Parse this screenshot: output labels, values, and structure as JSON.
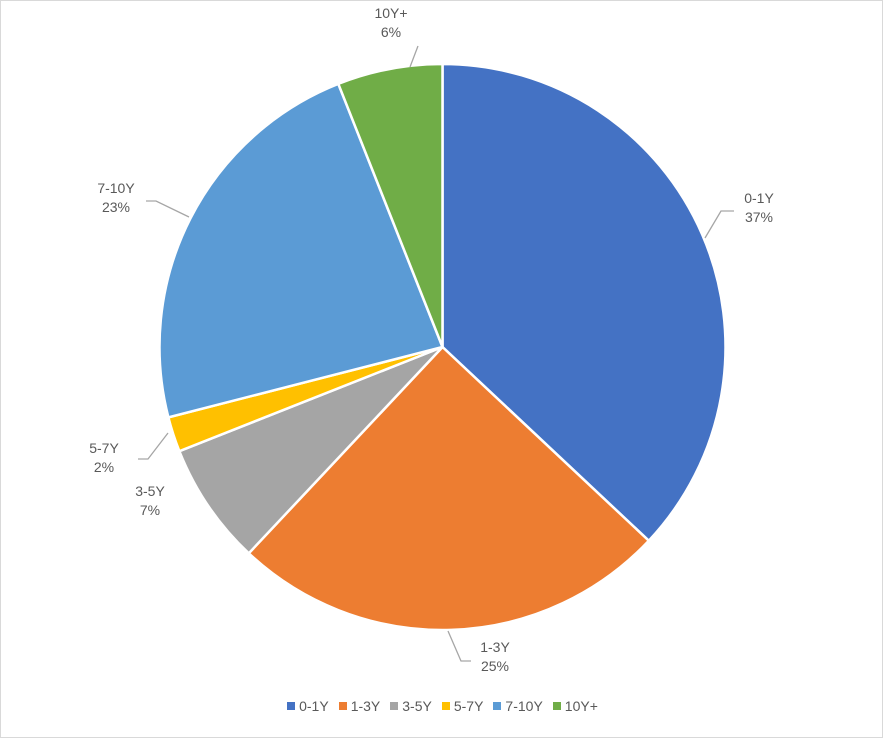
{
  "chart_data": {
    "type": "pie",
    "categories": [
      "0-1Y",
      "1-3Y",
      "3-5Y",
      "5-7Y",
      "7-10Y",
      "10Y+"
    ],
    "values": [
      37,
      25,
      7,
      2,
      23,
      6
    ],
    "labels": [
      "37%",
      "25%",
      "7%",
      "2%",
      "23%",
      "6%"
    ],
    "colors": [
      "#4472C4",
      "#ED7D31",
      "#A5A5A5",
      "#FFC000",
      "#5B9BD5",
      "#70AD47"
    ],
    "legend_position": "bottom",
    "title": ""
  }
}
